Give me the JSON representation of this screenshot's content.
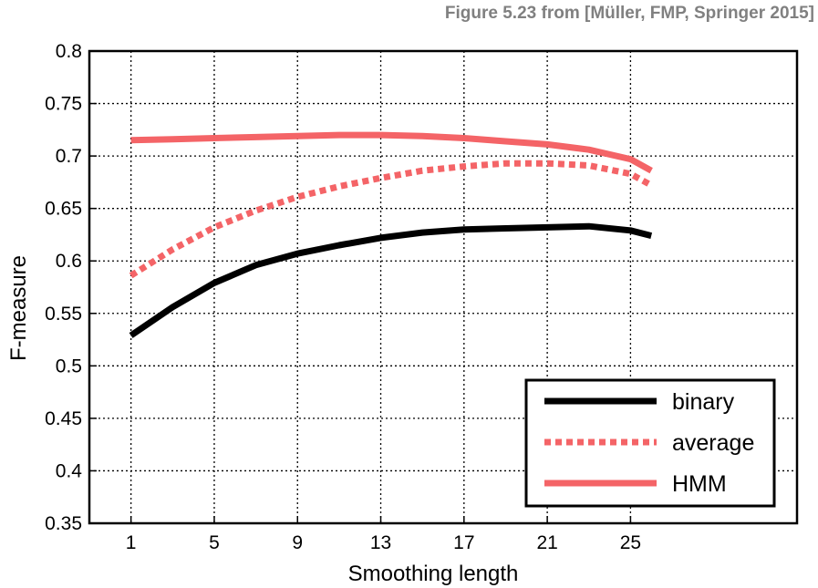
{
  "caption": "Figure 5.23 from [Müller, FMP, Springer 2015]",
  "chart_data": {
    "type": "line",
    "xlabel": "Smoothing length",
    "ylabel": "F-measure",
    "xlim": [
      -1,
      33
    ],
    "ylim": [
      0.35,
      0.8
    ],
    "xticks": [
      1,
      5,
      9,
      13,
      17,
      21,
      25
    ],
    "yticks": [
      0.35,
      0.4,
      0.45,
      0.5,
      0.55,
      0.6,
      0.65,
      0.7,
      0.75,
      0.8
    ],
    "ytick_labels": [
      "0.35",
      "0.4",
      "0.45",
      "0.5",
      "0.55",
      "0.6",
      "0.65",
      "0.7",
      "0.75",
      "0.8"
    ],
    "grid": true,
    "legend_position": "bottom-right",
    "x": [
      1,
      3,
      5,
      7,
      9,
      11,
      13,
      15,
      17,
      19,
      21,
      23,
      25,
      26
    ],
    "series": [
      {
        "name": "binary",
        "color": "#000000",
        "style": "solid",
        "values": [
          0.529,
          0.556,
          0.579,
          0.596,
          0.607,
          0.615,
          0.622,
          0.627,
          0.63,
          0.631,
          0.632,
          0.633,
          0.629,
          0.624
        ]
      },
      {
        "name": "average",
        "color": "#f46467",
        "style": "dotted",
        "values": [
          0.586,
          0.611,
          0.632,
          0.648,
          0.661,
          0.671,
          0.679,
          0.686,
          0.69,
          0.693,
          0.693,
          0.691,
          0.683,
          0.672
        ]
      },
      {
        "name": "HMM",
        "color": "#f46467",
        "style": "solid",
        "values": [
          0.715,
          0.716,
          0.717,
          0.718,
          0.719,
          0.72,
          0.72,
          0.719,
          0.717,
          0.714,
          0.711,
          0.706,
          0.697,
          0.686
        ]
      }
    ]
  }
}
